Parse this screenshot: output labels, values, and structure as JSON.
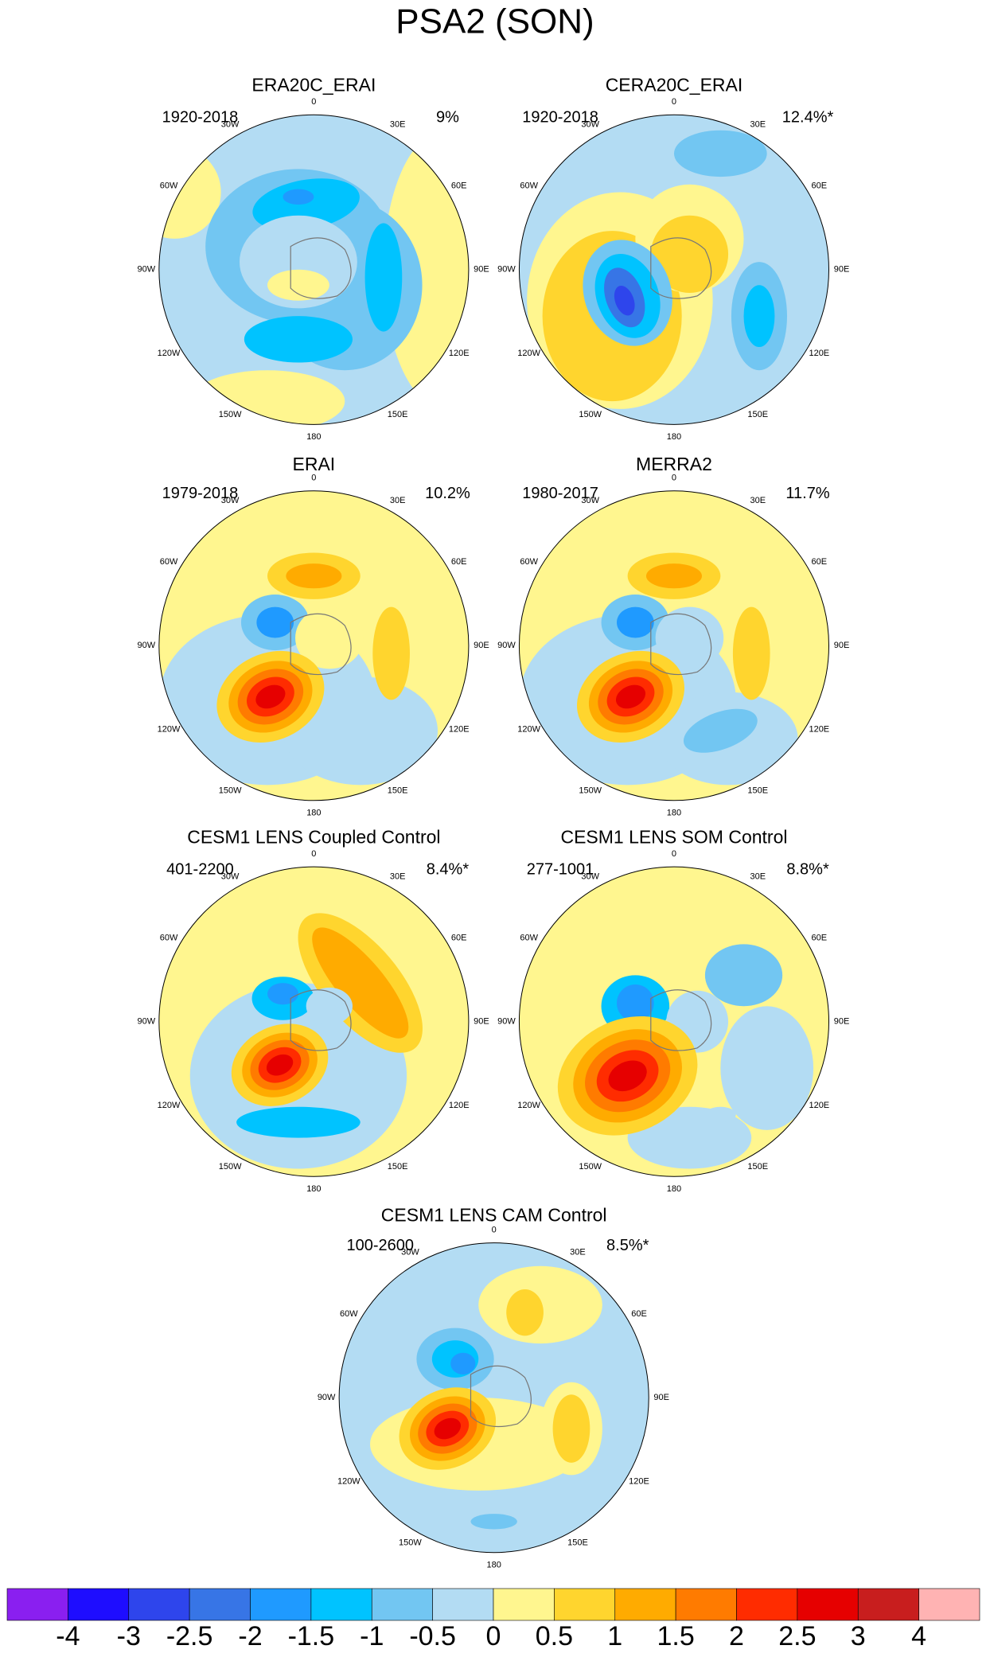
{
  "title": "PSA2 (SON)",
  "lon_labels": [
    "0",
    "30E",
    "60E",
    "90E",
    "120E",
    "150E",
    "180",
    "150W",
    "120W",
    "90W",
    "60W",
    "30W"
  ],
  "panels": [
    {
      "title": "ERA20C_ERAI",
      "period": "1920-2018",
      "percent": "9%"
    },
    {
      "title": "CERA20C_ERAI",
      "period": "1920-2018",
      "percent": "12.4%*"
    },
    {
      "title": "ERAI",
      "period": "1979-2018",
      "percent": "10.2%"
    },
    {
      "title": "MERRA2",
      "period": "1980-2017",
      "percent": "11.7%"
    },
    {
      "title": "CESM1 LENS Coupled Control",
      "period": "401-2200",
      "percent": "8.4%*"
    },
    {
      "title": "CESM1 LENS SOM Control",
      "period": "277-1001",
      "percent": "8.8%*"
    },
    {
      "title": "CESM1 LENS CAM Control",
      "period": "100-2600",
      "percent": "8.5%*"
    }
  ],
  "colorbar": {
    "labels": [
      -4,
      -3,
      -2.5,
      -2,
      -1.5,
      -1,
      -0.5,
      0,
      0.5,
      1,
      1.5,
      2,
      2.5,
      3,
      4
    ],
    "colors": [
      "#8a1ff0",
      "#1e0dff",
      "#2e45ec",
      "#3775e6",
      "#1f9aff",
      "#00c3ff",
      "#72c6f2",
      "#b3dcf3",
      "#fff68f",
      "#ffd52e",
      "#ffab00",
      "#ff7b00",
      "#ff2c00",
      "#e60000",
      "#c81e1e",
      "#ffb3b3"
    ]
  }
}
